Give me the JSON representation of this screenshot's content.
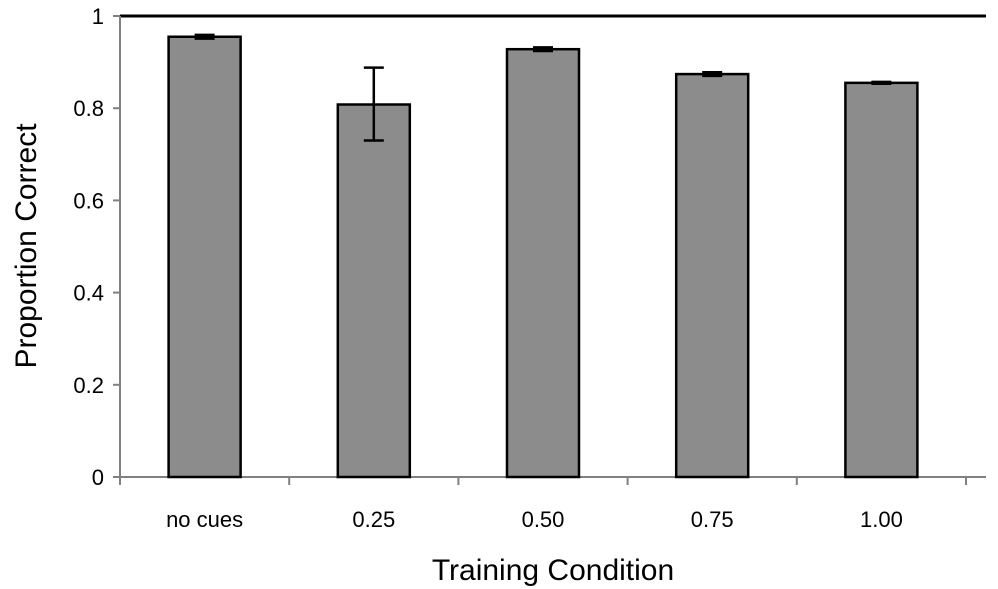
{
  "chart_data": {
    "type": "bar",
    "title": "",
    "xlabel": "Training Condition",
    "ylabel": "Proportion Correct",
    "categories": [
      "no cues",
      "0.25",
      "0.50",
      "0.75",
      "1.00"
    ],
    "values": [
      0.955,
      0.808,
      0.928,
      0.874,
      0.855
    ],
    "error_low": [
      0.951,
      0.73,
      0.924,
      0.87,
      0.853
    ],
    "error_high": [
      0.959,
      0.888,
      0.932,
      0.878,
      0.857
    ],
    "ylim": [
      0,
      1
    ],
    "yticks": [
      "0",
      "0.2",
      "0.4",
      "0.6",
      "0.8",
      "1"
    ],
    "ytick_values": [
      0,
      0.2,
      0.4,
      0.6,
      0.8,
      1
    ],
    "grid": false,
    "legend": "none",
    "colors": {
      "bar_fill": "#8c8c8c",
      "bar_stroke": "#000000",
      "axis": "#808080",
      "top_line": "#000000"
    }
  }
}
